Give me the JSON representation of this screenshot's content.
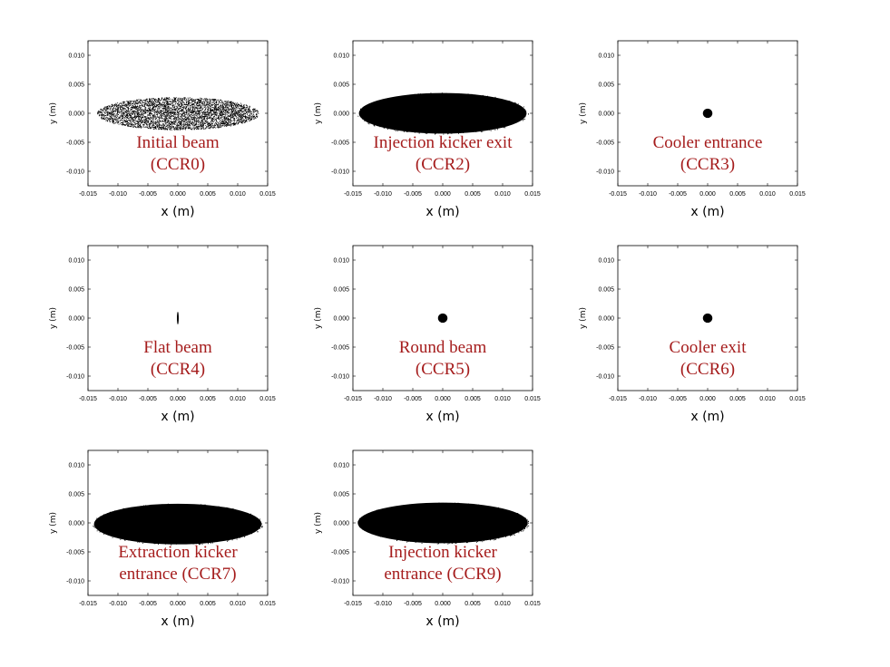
{
  "chart_data": [
    {
      "type": "scatter",
      "xlabel": "x (m)",
      "ylabel": "y (m)",
      "xlim": [
        -0.015,
        0.015
      ],
      "ylim": [
        -0.0125,
        0.0125
      ],
      "xticks": [
        "-0.015",
        "-0.010",
        "-0.005",
        "0.000",
        "0.005",
        "0.010",
        "0.015"
      ],
      "yticks": [
        "-0.010",
        "-0.005",
        "0.000",
        "0.005",
        "0.010"
      ],
      "label_lines": [
        "Initial beam",
        "(CCR0)"
      ],
      "distribution": {
        "shape": "ellipse",
        "x_center": 0.0,
        "y_center": 0.0,
        "x_half_width": 0.0135,
        "y_half_width": 0.0028,
        "density": "sparse"
      }
    },
    {
      "type": "scatter",
      "xlabel": "x (m)",
      "ylabel": "y (m)",
      "xlim": [
        -0.015,
        0.015
      ],
      "ylim": [
        -0.0125,
        0.0125
      ],
      "xticks": [
        "-0.015",
        "-0.010",
        "-0.005",
        "0.000",
        "0.005",
        "0.010",
        "0.015"
      ],
      "yticks": [
        "-0.010",
        "-0.005",
        "0.000",
        "0.005",
        "0.010"
      ],
      "label_lines": [
        "Injection kicker exit",
        "(CCR2)"
      ],
      "distribution": {
        "shape": "ellipse",
        "x_center": 0.0,
        "y_center": 0.0,
        "x_half_width": 0.014,
        "y_half_width": 0.0035,
        "density": "dense"
      }
    },
    {
      "type": "scatter",
      "xlabel": "x (m)",
      "ylabel": "y (m)",
      "xlim": [
        -0.015,
        0.015
      ],
      "ylim": [
        -0.0125,
        0.0125
      ],
      "xticks": [
        "-0.015",
        "-0.010",
        "-0.005",
        "0.000",
        "0.005",
        "0.010",
        "0.015"
      ],
      "yticks": [
        "-0.010",
        "-0.005",
        "0.000",
        "0.005",
        "0.010"
      ],
      "label_lines": [
        "Cooler entrance",
        "(CCR3)"
      ],
      "distribution": {
        "shape": "ellipse",
        "x_center": 0.0,
        "y_center": 0.0,
        "x_half_width": 0.0008,
        "y_half_width": 0.0008,
        "density": "dense"
      }
    },
    {
      "type": "scatter",
      "xlabel": "x (m)",
      "ylabel": "y (m)",
      "xlim": [
        -0.015,
        0.015
      ],
      "ylim": [
        -0.0125,
        0.0125
      ],
      "xticks": [
        "-0.015",
        "-0.010",
        "-0.005",
        "0.000",
        "0.005",
        "0.010",
        "0.015"
      ],
      "yticks": [
        "-0.010",
        "-0.005",
        "0.000",
        "0.005",
        "0.010"
      ],
      "label_lines": [
        "Flat beam",
        "(CCR4)"
      ],
      "distribution": {
        "shape": "ellipse",
        "x_center": 0.0,
        "y_center": 0.0,
        "x_half_width": 0.00015,
        "y_half_width": 0.0011,
        "density": "dense"
      }
    },
    {
      "type": "scatter",
      "xlabel": "x (m)",
      "ylabel": "y (m)",
      "xlim": [
        -0.015,
        0.015
      ],
      "ylim": [
        -0.0125,
        0.0125
      ],
      "xticks": [
        "-0.015",
        "-0.010",
        "-0.005",
        "0.000",
        "0.005",
        "0.010",
        "0.015"
      ],
      "yticks": [
        "-0.010",
        "-0.005",
        "0.000",
        "0.005",
        "0.010"
      ],
      "label_lines": [
        "Round beam",
        "(CCR5)"
      ],
      "distribution": {
        "shape": "ellipse",
        "x_center": 0.0,
        "y_center": 0.0,
        "x_half_width": 0.0008,
        "y_half_width": 0.0008,
        "density": "dense"
      }
    },
    {
      "type": "scatter",
      "xlabel": "x (m)",
      "ylabel": "y (m)",
      "xlim": [
        -0.015,
        0.015
      ],
      "ylim": [
        -0.0125,
        0.0125
      ],
      "xticks": [
        "-0.015",
        "-0.010",
        "-0.005",
        "0.000",
        "0.005",
        "0.010",
        "0.015"
      ],
      "yticks": [
        "-0.010",
        "-0.005",
        "0.000",
        "0.005",
        "0.010"
      ],
      "label_lines": [
        "Cooler exit",
        "(CCR6)"
      ],
      "distribution": {
        "shape": "ellipse",
        "x_center": 0.0,
        "y_center": 0.0,
        "x_half_width": 0.0008,
        "y_half_width": 0.0008,
        "density": "dense"
      }
    },
    {
      "type": "scatter",
      "xlabel": "x (m)",
      "ylabel": "y (m)",
      "xlim": [
        -0.015,
        0.015
      ],
      "ylim": [
        -0.0125,
        0.0125
      ],
      "xticks": [
        "-0.015",
        "-0.010",
        "-0.005",
        "0.000",
        "0.005",
        "0.010",
        "0.015"
      ],
      "yticks": [
        "-0.010",
        "-0.005",
        "0.000",
        "0.005",
        "0.010"
      ],
      "label_lines": [
        "Extraction kicker",
        "entrance (CCR7)"
      ],
      "distribution": {
        "shape": "ellipse",
        "x_center": 0.0,
        "y_center": -0.0002,
        "x_half_width": 0.014,
        "y_half_width": 0.0035,
        "density": "dense"
      }
    },
    {
      "type": "scatter",
      "xlabel": "x (m)",
      "ylabel": "y (m)",
      "xlim": [
        -0.015,
        0.015
      ],
      "ylim": [
        -0.0125,
        0.0125
      ],
      "xticks": [
        "-0.015",
        "-0.010",
        "-0.005",
        "0.000",
        "0.005",
        "0.010",
        "0.015"
      ],
      "yticks": [
        "-0.010",
        "-0.005",
        "0.000",
        "0.005",
        "0.010"
      ],
      "label_lines": [
        "Injection kicker",
        "entrance (CCR9)"
      ],
      "distribution": {
        "shape": "ellipse",
        "x_center": 0.0,
        "y_center": 0.0,
        "x_half_width": 0.0142,
        "y_half_width": 0.0035,
        "density": "dense"
      }
    }
  ],
  "colors": {
    "beam": "#000000",
    "label": "#a51c1c",
    "axes": "#000000",
    "background": "#ffffff"
  }
}
